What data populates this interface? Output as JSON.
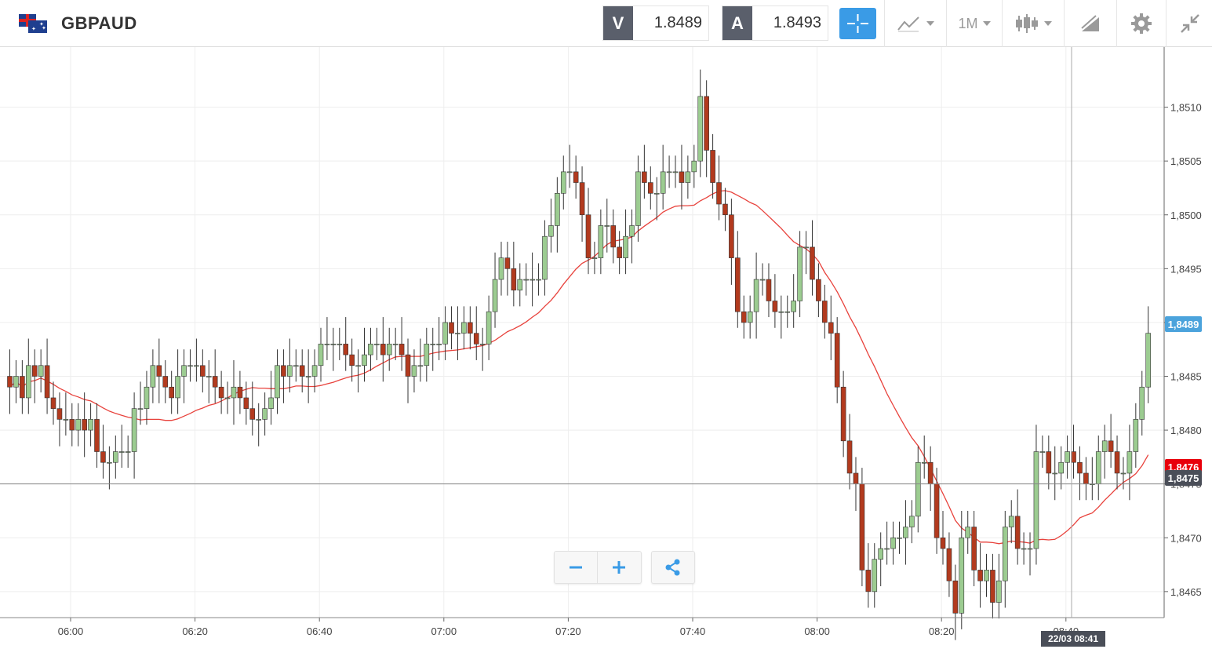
{
  "toolbar": {
    "instrument": "GBPAUD",
    "bid_label": "V",
    "bid_value": "1.8489",
    "ask_label": "A",
    "ask_value": "1.8493",
    "period": "1M",
    "icons": [
      "flag-uk-au-icon",
      "crosshair-icon",
      "chart-type-icon",
      "candlestick-icon",
      "drawing-icon",
      "gear-icon",
      "collapse-icon"
    ]
  },
  "chart_data": {
    "type": "candlestick",
    "symbol": "GBPAUD",
    "timeframe": "1M",
    "x_ticks": [
      "06:00",
      "06:20",
      "06:40",
      "07:00",
      "07:20",
      "07:40",
      "08:00",
      "08:20",
      "08:40"
    ],
    "y_ticks": [
      "1,8465",
      "1,8470",
      "1,8475",
      "1,8480",
      "1,8485",
      "1,8490",
      "1,8495",
      "1,8500",
      "1,8505",
      "1,8510"
    ],
    "ylim": [
      1.8462,
      1.8515
    ],
    "current_price_label": "1,8489",
    "crosshair_price_label": "1,8475",
    "hidden_price_label": "1,8476",
    "crosshair_time_label": "22/03 08:41",
    "ma_color": "#e8423c",
    "up_color": "#9ccc91",
    "down_color": "#b23a1e",
    "closes": [
      1.8484,
      1.8485,
      1.8483,
      1.8486,
      1.8485,
      1.8486,
      1.8483,
      1.8482,
      1.8481,
      1.8481,
      1.848,
      1.8481,
      1.848,
      1.8481,
      1.8478,
      1.8477,
      1.8477,
      1.8478,
      1.8478,
      1.8478,
      1.8482,
      1.8482,
      1.8484,
      1.8486,
      1.8485,
      1.8484,
      1.8483,
      1.8485,
      1.8486,
      1.8486,
      1.8486,
      1.8485,
      1.8485,
      1.8484,
      1.8483,
      1.8483,
      1.8484,
      1.8483,
      1.8482,
      1.8481,
      1.8481,
      1.8482,
      1.8483,
      1.8486,
      1.8485,
      1.8486,
      1.8486,
      1.8485,
      1.8485,
      1.8486,
      1.8488,
      1.8488,
      1.8488,
      1.8488,
      1.8487,
      1.8486,
      1.8486,
      1.8487,
      1.8488,
      1.8488,
      1.8487,
      1.8488,
      1.8488,
      1.8487,
      1.8485,
      1.8486,
      1.8486,
      1.8488,
      1.8488,
      1.8488,
      1.849,
      1.8489,
      1.8489,
      1.849,
      1.8489,
      1.8488,
      1.8488,
      1.8491,
      1.8494,
      1.8496,
      1.8495,
      1.8493,
      1.8494,
      1.8494,
      1.8494,
      1.8494,
      1.8498,
      1.8499,
      1.8502,
      1.8504,
      1.8504,
      1.8503,
      1.85,
      1.8496,
      1.8496,
      1.8499,
      1.8499,
      1.8497,
      1.8496,
      1.8498,
      1.8499,
      1.8504,
      1.8503,
      1.8502,
      1.8502,
      1.8504,
      1.8504,
      1.8504,
      1.8503,
      1.8504,
      1.8505,
      1.8511,
      1.8506,
      1.8503,
      1.8501,
      1.85,
      1.8496,
      1.8491,
      1.849,
      1.8491,
      1.8494,
      1.8494,
      1.8492,
      1.8491,
      1.8491,
      1.8491,
      1.8492,
      1.8497,
      1.8497,
      1.8494,
      1.8492,
      1.849,
      1.8489,
      1.8484,
      1.8479,
      1.8476,
      1.8475,
      1.8467,
      1.8465,
      1.8468,
      1.8469,
      1.8469,
      1.847,
      1.847,
      1.8471,
      1.8472,
      1.8477,
      1.8477,
      1.8475,
      1.847,
      1.8469,
      1.8466,
      1.8463,
      1.847,
      1.8471,
      1.8467,
      1.8466,
      1.8467,
      1.8464,
      1.8466,
      1.8471,
      1.8472,
      1.8469,
      1.8469,
      1.8469,
      1.8478,
      1.8478,
      1.8476,
      1.8476,
      1.8477,
      1.8478,
      1.8477,
      1.8476,
      1.8475,
      1.8475,
      1.8478,
      1.8479,
      1.8478,
      1.8476,
      1.8476,
      1.8478,
      1.8481,
      1.8484,
      1.8489
    ]
  }
}
